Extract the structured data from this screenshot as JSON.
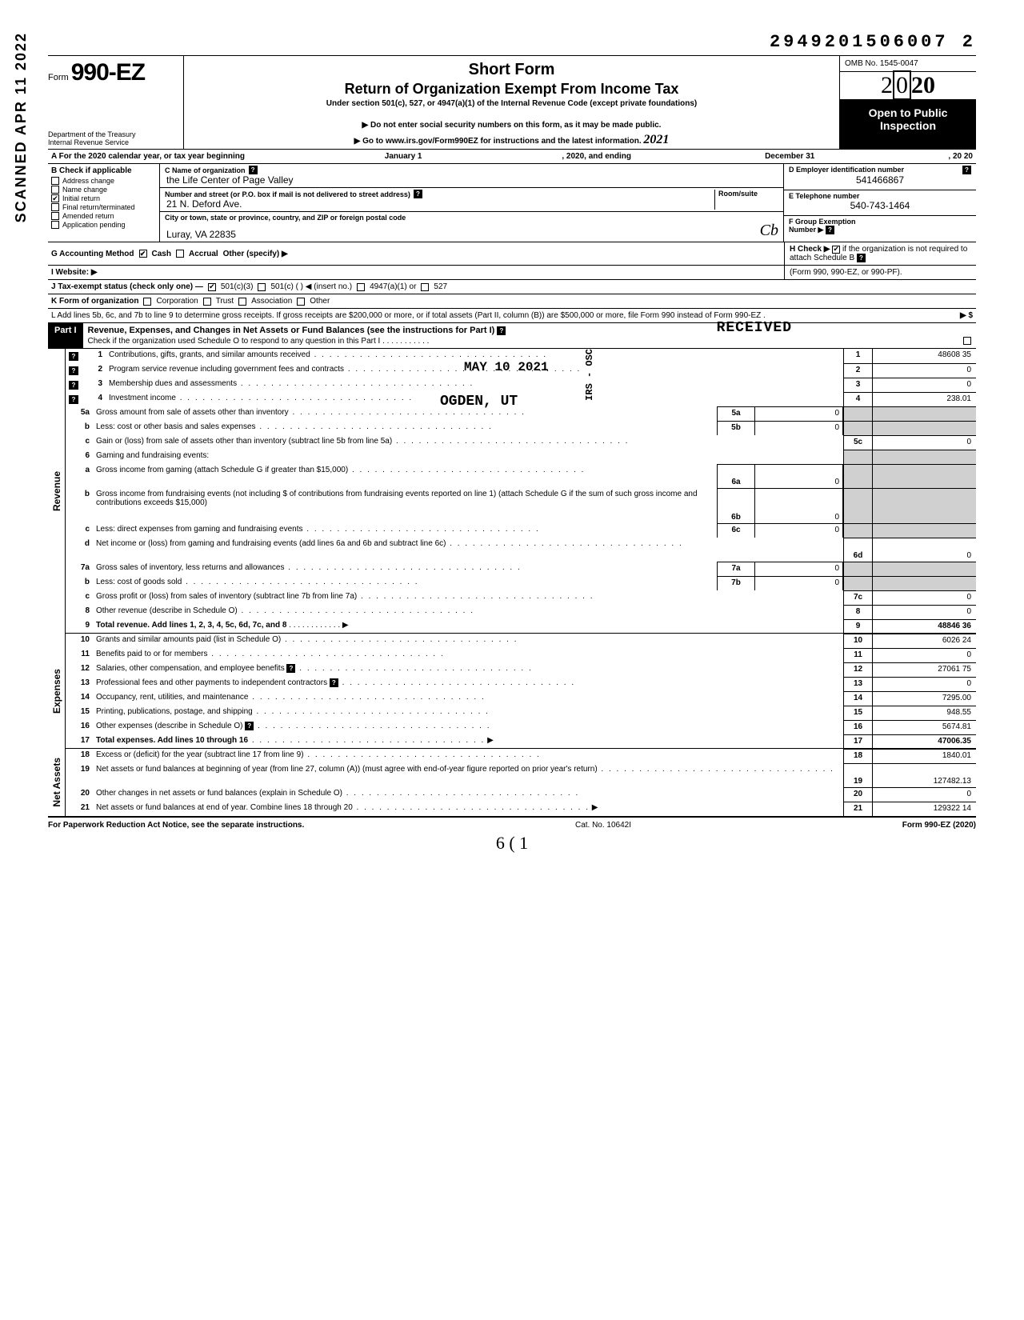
{
  "top_id": "2949201506007 2",
  "header": {
    "form_prefix": "Form",
    "form_number": "990-EZ",
    "dept1": "Department of the Treasury",
    "dept2": "Internal Revenue Service",
    "title1": "Short Form",
    "title2": "Return of Organization Exempt From Income Tax",
    "subtitle": "Under section 501(c), 527, or 4947(a)(1) of the Internal Revenue Code (except private foundations)",
    "warn": "▶ Do not enter social security numbers on this form, as it may be made public.",
    "goto": "▶ Go to www.irs.gov/Form990EZ for instructions and the latest information.",
    "scrawl": "2021",
    "omb": "OMB No. 1545-0047",
    "year_prefix": "2",
    "year_mid": "0",
    "year_bold": "20",
    "open1": "Open to Public",
    "open2": "Inspection"
  },
  "rowA": {
    "label": "A  For the 2020 calendar year, or tax year beginning",
    "begin": "January 1",
    "mid": ", 2020, and ending",
    "end": "December 31",
    "tail": ", 20    20"
  },
  "colB": {
    "title": "B  Check if applicable",
    "items": [
      {
        "label": "Address change",
        "checked": false
      },
      {
        "label": "Name change",
        "checked": false
      },
      {
        "label": "Initial return",
        "checked": true
      },
      {
        "label": "Final return/terminated",
        "checked": false
      },
      {
        "label": "Amended return",
        "checked": false
      },
      {
        "label": "Application pending",
        "checked": false
      }
    ]
  },
  "colC": {
    "name_lbl": "C  Name of organization",
    "name_val": "the Life Center of Page Valley",
    "street_lbl": "Number and street (or P.O. box if mail is not delivered to street address)",
    "room_lbl": "Room/suite",
    "street_val": "21 N. Deford Ave.",
    "city_lbl": "City or town, state or province, country, and ZIP or foreign postal code",
    "city_val": "Luray, VA 22835"
  },
  "colDE": {
    "d_lbl": "D Employer identification number",
    "d_val": "541466867",
    "e_lbl": "E Telephone number",
    "e_val": "540-743-1464",
    "f_lbl": "F Group Exemption",
    "f_lbl2": "Number ▶"
  },
  "rowG": {
    "label": "G  Accounting Method",
    "opts": [
      "Cash",
      "Accrual",
      "Other (specify) ▶"
    ],
    "checked": 0,
    "h_label": "H  Check ▶",
    "h_text": "if the organization is not required to attach Schedule B",
    "h_text2": "(Form 990, 990-EZ, or 990-PF)."
  },
  "rowI": {
    "label": "I  Website: ▶"
  },
  "rowJ": {
    "label": "J Tax-exempt status (check only one) —",
    "opts": [
      "501(c)(3)",
      "501(c) (        ) ◀ (insert no.)",
      "4947(a)(1) or",
      "527"
    ],
    "checked": 0
  },
  "rowK": {
    "label": "K Form of organization",
    "opts": [
      "Corporation",
      "Trust",
      "Association",
      "Other"
    ]
  },
  "rowL": {
    "text": "L  Add lines 5b, 6c, and 7b to line 9 to determine gross receipts. If gross receipts are $200,000 or more, or if total assets (Part II, column (B)) are $500,000 or more, file Form 990 instead of Form 990-EZ .",
    "tail": "▶  $"
  },
  "part1": {
    "label": "Part I",
    "title": "Revenue, Expenses, and Changes in Net Assets or Fund Balances (see the instructions for Part I)",
    "sub": "Check if the organization used Schedule O to respond to any question in this Part I"
  },
  "stamps": {
    "received": "RECEIVED",
    "date": "MAY 10 2021",
    "irs": "IRS - OSC",
    "ogden": "OGDEN, UT",
    "scanned": "SCANNED  APR 11 2022"
  },
  "revenue_lines": [
    {
      "num": "1",
      "desc": "Contributions, gifts, grants, and similar amounts received",
      "r": "1",
      "val": "48608 35"
    },
    {
      "num": "2",
      "desc": "Program service revenue including government fees and contracts",
      "r": "2",
      "val": "0"
    },
    {
      "num": "3",
      "desc": "Membership dues and assessments",
      "r": "3",
      "val": "0"
    },
    {
      "num": "4",
      "desc": "Investment income",
      "r": "4",
      "val": "238.01"
    }
  ],
  "line5": {
    "a_num": "5a",
    "a_desc": "Gross amount from sale of assets other than inventory",
    "a_box": "5a",
    "a_val": "0",
    "b_num": "b",
    "b_desc": "Less: cost or other basis and sales expenses",
    "b_box": "5b",
    "b_val": "0",
    "c_num": "c",
    "c_desc": "Gain or (loss) from sale of assets other than inventory (subtract line 5b from line 5a)",
    "c_r": "5c",
    "c_val": "0"
  },
  "line6": {
    "num": "6",
    "desc": "Gaming and fundraising events:",
    "a_num": "a",
    "a_desc": "Gross income from gaming (attach Schedule G if greater than $15,000)",
    "a_box": "6a",
    "a_val": "0",
    "b_num": "b",
    "b_desc": "Gross income from fundraising events (not including  $                          of contributions from fundraising events reported on line 1) (attach Schedule G if the sum of such gross income and contributions exceeds $15,000)",
    "b_box": "6b",
    "b_val": "0",
    "c_num": "c",
    "c_desc": "Less: direct expenses from gaming and fundraising events",
    "c_box": "6c",
    "c_val": "0",
    "d_num": "d",
    "d_desc": "Net income or (loss) from gaming and fundraising events (add lines 6a and 6b and subtract line 6c)",
    "d_r": "6d",
    "d_val": "0"
  },
  "line7": {
    "a_num": "7a",
    "a_desc": "Gross sales of inventory, less returns and allowances",
    "a_box": "7a",
    "a_val": "0",
    "b_num": "b",
    "b_desc": "Less: cost of goods sold",
    "b_box": "7b",
    "b_val": "0",
    "c_num": "c",
    "c_desc": "Gross profit or (loss) from sales of inventory (subtract line 7b from line 7a)",
    "c_r": "7c",
    "c_val": "0"
  },
  "line8": {
    "num": "8",
    "desc": "Other revenue (describe in Schedule O)",
    "r": "8",
    "val": "0"
  },
  "line9": {
    "num": "9",
    "desc": "Total revenue. Add lines 1, 2, 3, 4, 5c, 6d, 7c, and 8",
    "r": "9",
    "val": "48846 36",
    "bold": true
  },
  "expense_lines": [
    {
      "num": "10",
      "desc": "Grants and similar amounts paid (list in Schedule O)",
      "r": "10",
      "val": "6026 24"
    },
    {
      "num": "11",
      "desc": "Benefits paid to or for members",
      "r": "11",
      "val": "0"
    },
    {
      "num": "12",
      "desc": "Salaries, other compensation, and employee benefits",
      "r": "12",
      "val": "27061 75",
      "help": true
    },
    {
      "num": "13",
      "desc": "Professional fees and other payments to independent contractors",
      "r": "13",
      "val": "0",
      "help": true
    },
    {
      "num": "14",
      "desc": "Occupancy, rent, utilities, and maintenance",
      "r": "14",
      "val": "7295.00"
    },
    {
      "num": "15",
      "desc": "Printing, publications, postage, and shipping",
      "r": "15",
      "val": "948.55"
    },
    {
      "num": "16",
      "desc": "Other expenses (describe in Schedule O)",
      "r": "16",
      "val": "5674.81",
      "help": true
    },
    {
      "num": "17",
      "desc": "Total expenses. Add lines 10 through 16",
      "r": "17",
      "val": "47006.35",
      "bold": true
    }
  ],
  "net_lines": [
    {
      "num": "18",
      "desc": "Excess or (deficit) for the year (subtract line 17 from line 9)",
      "r": "18",
      "val": "1840.01"
    },
    {
      "num": "19",
      "desc": "Net assets or fund balances at beginning of year (from line 27, column (A)) (must agree with end-of-year figure reported on prior year's return)",
      "r": "19",
      "val": "127482.13"
    },
    {
      "num": "20",
      "desc": "Other changes in net assets or fund balances (explain in Schedule O)",
      "r": "20",
      "val": "0"
    },
    {
      "num": "21",
      "desc": "Net assets or fund balances at end of year. Combine lines 18 through 20",
      "r": "21",
      "val": "129322 14"
    }
  ],
  "footer": {
    "left": "For Paperwork Reduction Act Notice, see the separate instructions.",
    "mid": "Cat. No. 10642I",
    "right": "Form 990-EZ (2020)",
    "scrawl": "6 ( 1"
  },
  "section_labels": {
    "revenue": "Revenue",
    "expenses": "Expenses",
    "netassets": "Net Assets"
  }
}
